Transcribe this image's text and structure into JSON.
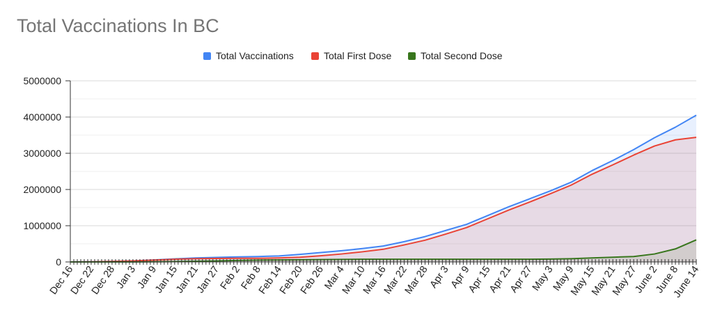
{
  "chart_data": {
    "type": "area",
    "title": "Total Vaccinations In BC",
    "xlabel": "",
    "ylabel": "",
    "ylim": [
      0,
      5000000
    ],
    "yticks": [
      0,
      1000000,
      2000000,
      3000000,
      4000000,
      5000000
    ],
    "ytick_labels": [
      "0",
      "1000000",
      "2000000",
      "3000000",
      "4000000",
      "5000000"
    ],
    "grid": true,
    "legend_position": "top",
    "xtick_labels": [
      "Dec 16",
      "Dec 22",
      "Dec 28",
      "Jan 3",
      "Jan 9",
      "Jan 15",
      "Jan 21",
      "Jan 27",
      "Feb 2",
      "Feb 8",
      "Feb 14",
      "Feb 20",
      "Feb 26",
      "Mar 4",
      "Mar 10",
      "Mar 16",
      "Mar 22",
      "Mar 28",
      "Apr 3",
      "Apr 9",
      "Apr 15",
      "Apr 21",
      "Apr 27",
      "May 3",
      "May 9",
      "May 15",
      "May 21",
      "May 27",
      "June 2",
      "June 8",
      "June 14"
    ],
    "x": [
      "Dec 16",
      "Dec 22",
      "Dec 28",
      "Jan 3",
      "Jan 9",
      "Jan 15",
      "Jan 21",
      "Jan 27",
      "Feb 2",
      "Feb 8",
      "Feb 14",
      "Feb 20",
      "Feb 26",
      "Mar 4",
      "Mar 10",
      "Mar 16",
      "Mar 22",
      "Mar 28",
      "Apr 3",
      "Apr 9",
      "Apr 15",
      "Apr 21",
      "Apr 27",
      "May 3",
      "May 9",
      "May 15",
      "May 21",
      "May 27",
      "June 2",
      "June 8",
      "June 14"
    ],
    "series": [
      {
        "name": "Total Vaccinations",
        "color": "#4285f4",
        "values": [
          0,
          5000,
          15000,
          30000,
          55000,
          85000,
          110000,
          125000,
          140000,
          150000,
          165000,
          210000,
          260000,
          310000,
          370000,
          440000,
          560000,
          700000,
          870000,
          1040000,
          1280000,
          1520000,
          1740000,
          1960000,
          2200000,
          2520000,
          2800000,
          3100000,
          3430000,
          3720000,
          4050000
        ]
      },
      {
        "name": "Total First Dose",
        "color": "#ea4335",
        "values": [
          0,
          5000,
          15000,
          30000,
          50000,
          75000,
          90000,
          95000,
          100000,
          100000,
          110000,
          130000,
          170000,
          220000,
          280000,
          350000,
          470000,
          600000,
          770000,
          950000,
          1190000,
          1430000,
          1650000,
          1880000,
          2120000,
          2420000,
          2680000,
          2950000,
          3200000,
          3370000,
          3440000
        ]
      },
      {
        "name": "Total Second Dose",
        "color": "#38761d",
        "values": [
          0,
          0,
          0,
          0,
          5000,
          10000,
          20000,
          30000,
          40000,
          50000,
          55000,
          60000,
          65000,
          70000,
          75000,
          75000,
          75000,
          75000,
          75000,
          75000,
          75000,
          75000,
          75000,
          80000,
          90000,
          110000,
          130000,
          150000,
          220000,
          360000,
          610000
        ]
      }
    ]
  }
}
